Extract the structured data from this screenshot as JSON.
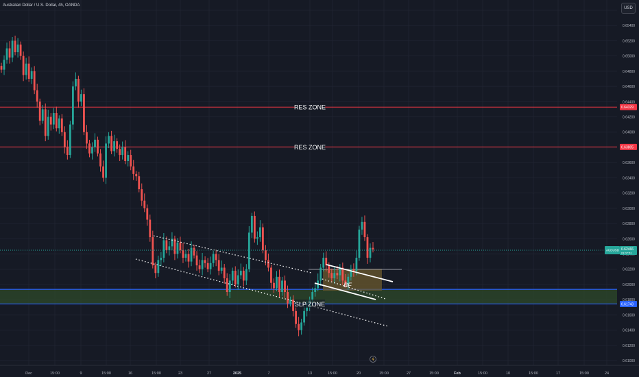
{
  "header": {
    "title": "Australian Dollar / U.S. Dollar, 4h, OANDA",
    "currency_button": "USD"
  },
  "colors": {
    "background": "#161a25",
    "up": "#26a69a",
    "down": "#ef5350",
    "resistance_line": "#f23645",
    "support_line": "#2962ff",
    "zone_fill": "#2e4a2a",
    "box_fill": "#6b5a2e",
    "channel": "#ffffff",
    "current_price": "#26a69a"
  },
  "chart_data": {
    "type": "candlestick",
    "symbol": "AUDUSD",
    "interval": "4h",
    "ylim": [
      0.61,
      0.656
    ],
    "y_ticks": [
      "0.65600",
      "0.65400",
      "0.65200",
      "0.65000",
      "0.64800",
      "0.64600",
      "0.64400",
      "0.64200",
      "0.64000",
      "0.63800",
      "0.63600",
      "0.63400",
      "0.63200",
      "0.63000",
      "0.62800",
      "0.62600",
      "0.62400",
      "0.62200",
      "0.62000",
      "0.61800",
      "0.61600",
      "0.61400",
      "0.61200",
      "0.61000"
    ],
    "x_ticks": [
      "Dec",
      "15:00",
      "9",
      "15:00",
      "16",
      "15:00",
      "23",
      "27",
      "2025",
      "7",
      "13",
      "15:00",
      "20",
      "15:00",
      "27",
      "15:00",
      "Feb",
      "15:00",
      "10",
      "15:00",
      "17",
      "15:00",
      "24"
    ],
    "closes": [
      0.6482,
      0.6495,
      0.651,
      0.6498,
      0.652,
      0.6505,
      0.6515,
      0.65,
      0.6475,
      0.649,
      0.647,
      0.648,
      0.6455,
      0.644,
      0.6415,
      0.643,
      0.6395,
      0.642,
      0.641,
      0.6425,
      0.6405,
      0.6418,
      0.64,
      0.638,
      0.637,
      0.641,
      0.646,
      0.647,
      0.644,
      0.645,
      0.64,
      0.6385,
      0.6372,
      0.638,
      0.639,
      0.6372,
      0.6355,
      0.634,
      0.6385,
      0.6395,
      0.6375,
      0.6388,
      0.6378,
      0.637,
      0.638,
      0.6362,
      0.637,
      0.6355,
      0.6345,
      0.6342,
      0.6325,
      0.631,
      0.63,
      0.6285,
      0.6262,
      0.6225,
      0.6215,
      0.6232,
      0.6235,
      0.6258,
      0.6245,
      0.625,
      0.626,
      0.624,
      0.6255,
      0.6245,
      0.6235,
      0.624,
      0.623,
      0.6248,
      0.6238,
      0.6225,
      0.622,
      0.6232,
      0.6228,
      0.622,
      0.6228,
      0.624,
      0.6232,
      0.6218,
      0.6222,
      0.6208,
      0.619,
      0.6205,
      0.6218,
      0.62,
      0.6212,
      0.6218,
      0.6205,
      0.622,
      0.6268,
      0.629,
      0.626,
      0.6262,
      0.6275,
      0.6245,
      0.6232,
      0.6222,
      0.6202,
      0.6195,
      0.621,
      0.619,
      0.6205,
      0.619,
      0.6175,
      0.618,
      0.6165,
      0.6148,
      0.614,
      0.615,
      0.6165,
      0.617,
      0.618,
      0.619,
      0.6195,
      0.6205,
      0.6222,
      0.6235,
      0.6225,
      0.6215,
      0.6208,
      0.6215,
      0.6212,
      0.6222,
      0.6205,
      0.62,
      0.621,
      0.622,
      0.6218,
      0.6235,
      0.6272,
      0.6282,
      0.6262,
      0.6235,
      0.6248,
      0.6246
    ],
    "resistance_zones": [
      {
        "label": "RES ZONE",
        "price": 0.64329,
        "axis_label": "0.64329"
      },
      {
        "label": "RES ZONE",
        "price": 0.63805,
        "axis_label": "0.63805"
      }
    ],
    "support_zone": {
      "label": "SLP ZONE",
      "upper": 0.61935,
      "lower": 0.61743,
      "axis_label": "0.61743"
    },
    "current_price": {
      "symbol": "AUDUSD",
      "value": "0.62466",
      "countdown": "01:07:51"
    },
    "annotations": [
      {
        "text": "BF"
      }
    ]
  }
}
